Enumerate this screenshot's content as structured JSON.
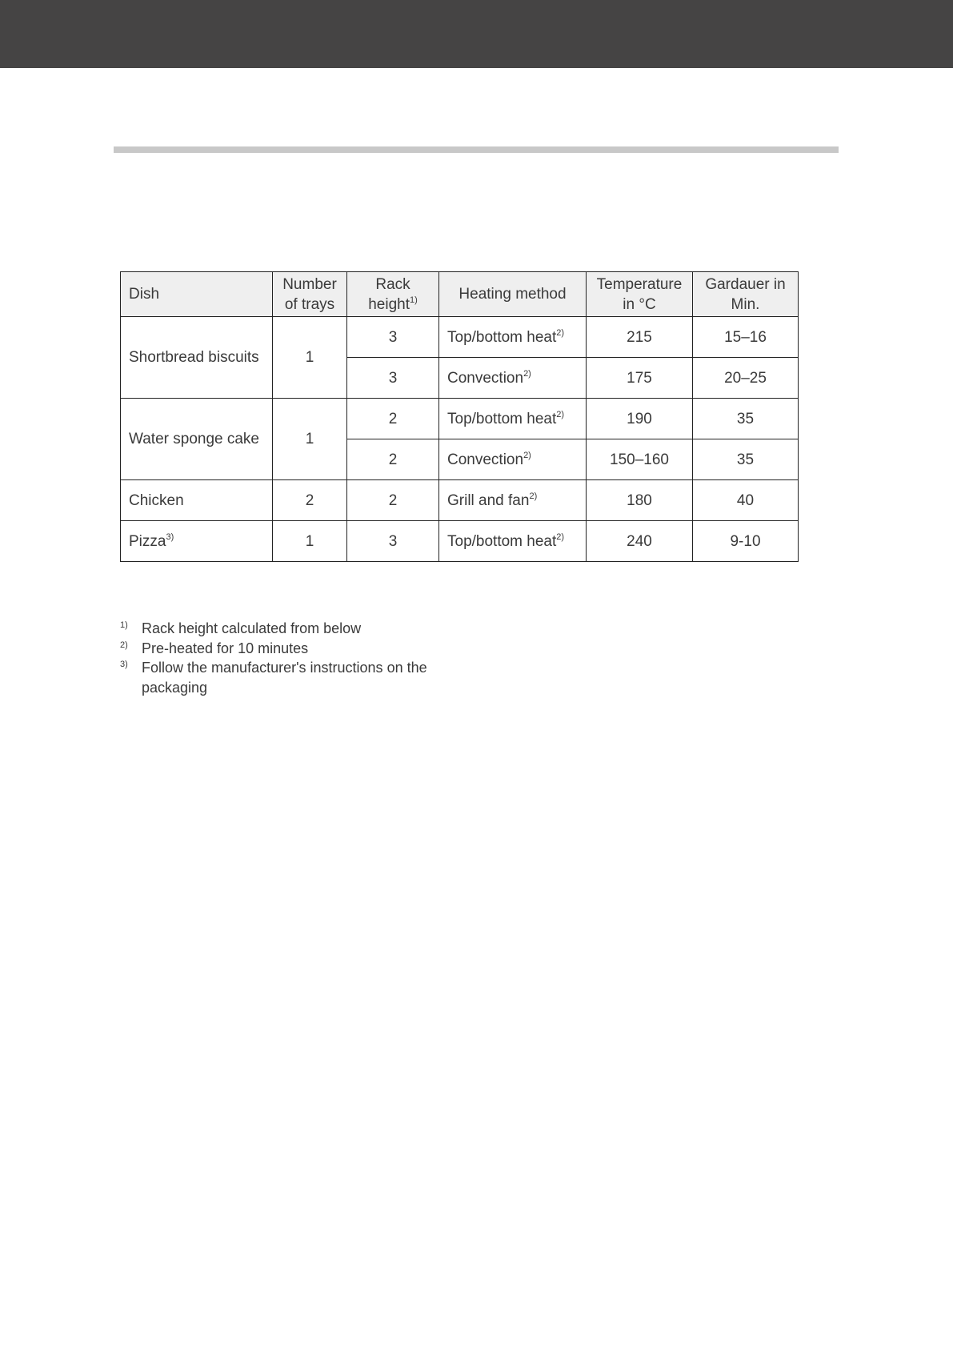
{
  "table": {
    "headers": [
      {
        "text": "Dish"
      },
      {
        "text": "Number of trays"
      },
      {
        "text": "Rack height",
        "sup": "1)"
      },
      {
        "text": "Heating method"
      },
      {
        "text": "Temperature in °C"
      },
      {
        "text": "Gardauer in Min."
      }
    ],
    "rows": [
      {
        "dish": "Shortbread biscuits",
        "trays": "1",
        "rack": "3",
        "method": "Top/bottom heat",
        "method_sup": "2)",
        "temp": "215",
        "time": "15–16"
      },
      {
        "rack": "3",
        "method": "Convection",
        "method_sup": "2)",
        "temp": "175",
        "time": "20–25"
      },
      {
        "dish": "Water sponge cake",
        "trays": "1",
        "rack": "2",
        "method": "Top/bottom heat",
        "method_sup": "2)",
        "temp": "190",
        "time": "35"
      },
      {
        "rack": "2",
        "method": "Convection",
        "method_sup": "2)",
        "temp": "150–160",
        "time": "35"
      },
      {
        "dish": "Chicken",
        "trays": "2",
        "rack": "2",
        "method": "Grill and fan",
        "method_sup": "2)",
        "temp": "180",
        "time": "40"
      },
      {
        "dish": "Pizza",
        "dish_sup": "3)",
        "trays": "1",
        "rack": "3",
        "method": "Top/bottom heat",
        "method_sup": "2)",
        "temp": "240",
        "time": "9-10"
      }
    ]
  },
  "footnotes": [
    {
      "mark": "1)",
      "text": "Rack height calculated from below"
    },
    {
      "mark": "2)",
      "text": "Pre-heated for 10 minutes"
    },
    {
      "mark": "3)",
      "text": "Follow the manufacturer's instructions on the packaging"
    }
  ]
}
